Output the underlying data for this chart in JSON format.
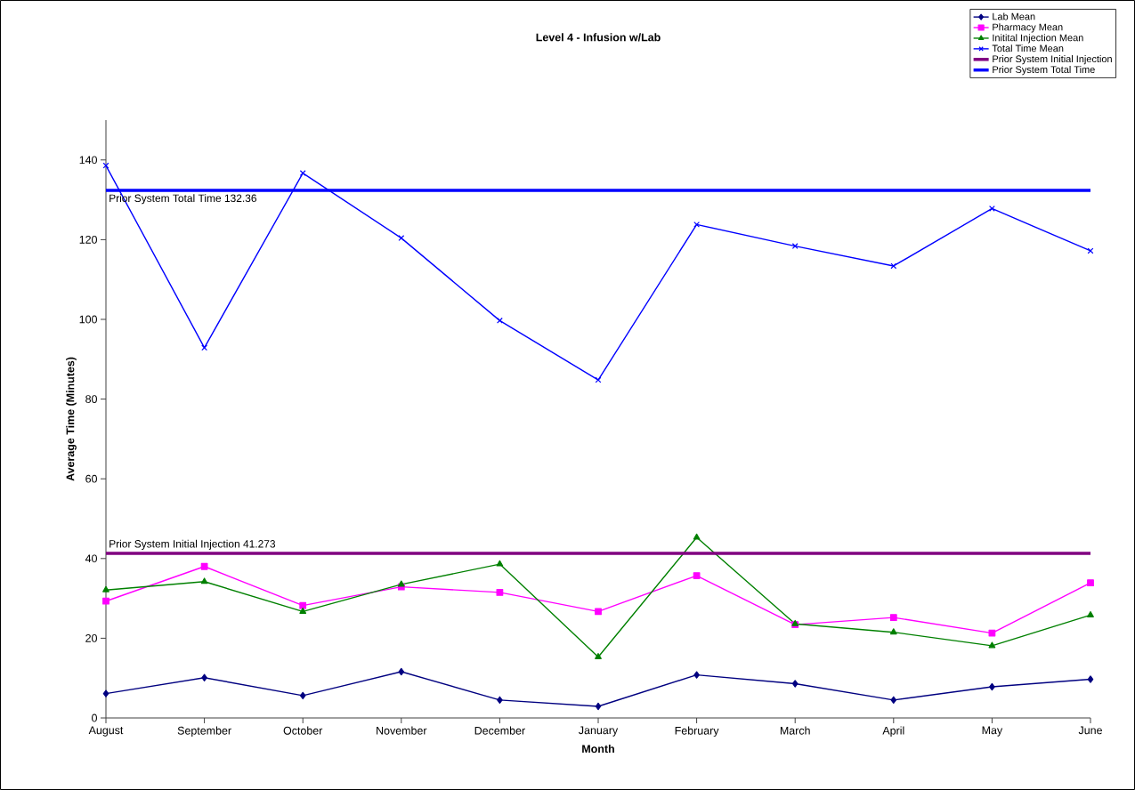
{
  "chart_data": {
    "type": "line",
    "title": "Level 4 - Infusion w/Lab",
    "xlabel": "Month",
    "ylabel": "Average Time (Minutes)",
    "categories": [
      "August",
      "September",
      "October",
      "November",
      "December",
      "January",
      "February",
      "March",
      "April",
      "May",
      "June"
    ],
    "series": [
      {
        "name": "Lab Mean",
        "color": "#000080",
        "marker": "diamond",
        "values": [
          6.1,
          10.1,
          5.6,
          11.6,
          4.5,
          2.9,
          10.8,
          8.6,
          4.5,
          7.8,
          9.7
        ]
      },
      {
        "name": "Pharmacy Mean",
        "color": "#ff00ff",
        "marker": "square",
        "values": [
          29.3,
          38.0,
          28.2,
          32.9,
          31.5,
          26.7,
          35.7,
          23.4,
          25.2,
          21.3,
          33.9
        ]
      },
      {
        "name": "Initital Injection Mean",
        "color": "#008000",
        "marker": "triangle",
        "values": [
          32.1,
          34.2,
          26.7,
          33.5,
          38.6,
          15.3,
          45.3,
          23.6,
          21.5,
          18.1,
          25.8
        ]
      },
      {
        "name": "Total Time Mean",
        "color": "#0000ff",
        "marker": "cross",
        "values": [
          138.6,
          92.9,
          136.7,
          120.4,
          99.7,
          84.8,
          123.8,
          118.4,
          113.4,
          127.8,
          117.2
        ]
      },
      {
        "name": "Prior System Initial Injection",
        "color": "#800080",
        "marker": "none",
        "values": [
          41.273,
          41.273,
          41.273,
          41.273,
          41.273,
          41.273,
          41.273,
          41.273,
          41.273,
          41.273,
          41.273
        ]
      },
      {
        "name": "Prior System Total Time",
        "color": "#0000ff",
        "marker": "none",
        "values": [
          132.36,
          132.36,
          132.36,
          132.36,
          132.36,
          132.36,
          132.36,
          132.36,
          132.36,
          132.36,
          132.36
        ]
      }
    ],
    "annotations": [
      {
        "text": "Prior System Total Time 132.36",
        "y": 132.36
      },
      {
        "text": "Prior System Initial Injection 41.273",
        "y": 41.273
      }
    ],
    "ylim": [
      0,
      150
    ],
    "yticks": [
      0,
      20,
      40,
      60,
      80,
      100,
      120,
      140
    ],
    "grid": false,
    "legend": "top right"
  }
}
